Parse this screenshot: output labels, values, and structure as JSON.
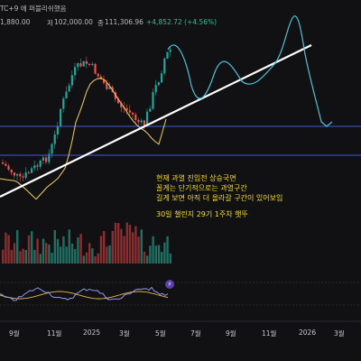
{
  "header": {
    "symbol_suffix": "TC+9 에 퍼블리쉬했음",
    "low": "1,880.00",
    "high_label": "저",
    "high": "102,000.00",
    "close_label": "종",
    "close": "111,306.96",
    "change": "+4,852.72 (+4.56%)"
  },
  "colors": {
    "background": "#111114",
    "candle_up": "#26a69a",
    "candle_down": "#ef5350",
    "volume_up": "#1f6f63",
    "volume_down": "#8a2f30",
    "trendline": "#ffffff",
    "ma_line": "#f0d060",
    "projection": "#4fc3d9",
    "horizontal_lines": "#3a5bd9",
    "rsi_line": "#9aa4ff",
    "rsi_signal": "#e6b84f",
    "annotation_text": "#f5dc2e"
  },
  "annotation": {
    "lines": [
      "현재 과열 진입전 상승국면",
      "꼴게는 단기적으로는 과열구간",
      "길게 보면 아직 더 올라갈 구간이 있어보임"
    ],
    "footer": "30일 챌린지 29기 1주차  햇뚜"
  },
  "icons": {
    "replay": "lightning-icon"
  },
  "chart_data": {
    "type": "candlestick",
    "title": "",
    "x_ticks": [
      "9월",
      "11월",
      "2025",
      "3월",
      "5월",
      "7월",
      "9월",
      "11월",
      "2026",
      "3월"
    ],
    "indicators": [
      "volume",
      "rsi",
      "moving-average",
      "trendline",
      "projection"
    ],
    "grid": false,
    "legend": "none"
  }
}
